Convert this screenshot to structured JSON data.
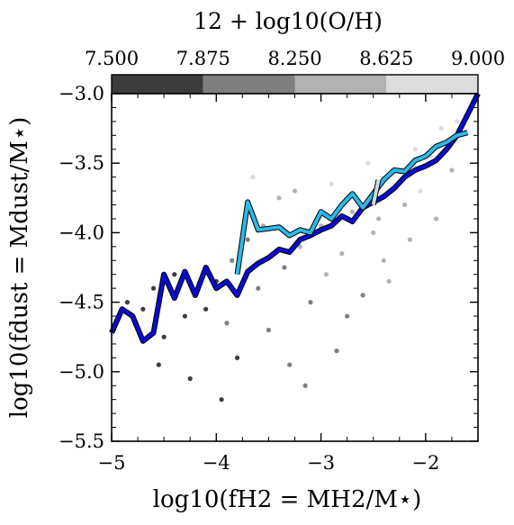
{
  "chart_data": {
    "type": "scatter",
    "colorbar": {
      "title": "12 + log10(O/H)",
      "ticks": [
        "7.500",
        "7.875",
        "8.250",
        "8.625",
        "9.000"
      ],
      "range": [
        7.5,
        9.0
      ],
      "bins": [
        {
          "from": 7.5,
          "to": 7.875,
          "color": "#3c3c3c"
        },
        {
          "from": 7.875,
          "to": 8.25,
          "color": "#7f7f7f"
        },
        {
          "from": 8.25,
          "to": 8.625,
          "color": "#b2b2b2"
        },
        {
          "from": 8.625,
          "to": 9.0,
          "color": "#dcdcdc"
        }
      ]
    },
    "xlabel": "log10(fH2 = MH2/M⋆)",
    "ylabel": "log10(fdust = Mdust/M⋆)",
    "xlim": [
      -5.0,
      -1.5
    ],
    "ylim": [
      -5.5,
      -3.0
    ],
    "xticks": [
      -5,
      -4,
      -3,
      -2
    ],
    "yticks": [
      -3.0,
      -3.5,
      -4.0,
      -4.5,
      -5.0,
      -5.5
    ],
    "xtick_labels": [
      "−5",
      "−4",
      "−3",
      "−2"
    ],
    "ytick_labels": [
      "−3.0",
      "−3.5",
      "−4.0",
      "−4.5",
      "−5.0",
      "−5.5"
    ],
    "scatter_points": [
      {
        "x": -4.85,
        "y": -4.5,
        "z": 7.6
      },
      {
        "x": -4.7,
        "y": -4.55,
        "z": 7.7
      },
      {
        "x": -4.6,
        "y": -4.4,
        "z": 7.6
      },
      {
        "x": -4.5,
        "y": -4.75,
        "z": 7.8
      },
      {
        "x": -4.4,
        "y": -4.3,
        "z": 7.7
      },
      {
        "x": -4.3,
        "y": -4.6,
        "z": 7.6
      },
      {
        "x": -4.2,
        "y": -4.45,
        "z": 7.9
      },
      {
        "x": -4.1,
        "y": -4.55,
        "z": 7.7
      },
      {
        "x": -4.0,
        "y": -4.35,
        "z": 7.8
      },
      {
        "x": -3.9,
        "y": -4.65,
        "z": 7.9
      },
      {
        "x": -3.85,
        "y": -4.2,
        "z": 8.0
      },
      {
        "x": -3.8,
        "y": -4.9,
        "z": 7.8
      },
      {
        "x": -3.7,
        "y": -4.05,
        "z": 8.1
      },
      {
        "x": -3.6,
        "y": -4.4,
        "z": 7.9
      },
      {
        "x": -3.5,
        "y": -4.7,
        "z": 8.0
      },
      {
        "x": -3.4,
        "y": -3.75,
        "z": 8.6
      },
      {
        "x": -3.35,
        "y": -4.25,
        "z": 8.2
      },
      {
        "x": -3.3,
        "y": -4.95,
        "z": 8.1
      },
      {
        "x": -3.2,
        "y": -4.1,
        "z": 8.3
      },
      {
        "x": -3.1,
        "y": -4.5,
        "z": 8.0
      },
      {
        "x": -3.0,
        "y": -3.95,
        "z": 8.5
      },
      {
        "x": -2.95,
        "y": -4.3,
        "z": 8.3
      },
      {
        "x": -2.9,
        "y": -3.65,
        "z": 8.7
      },
      {
        "x": -2.8,
        "y": -4.15,
        "z": 8.4
      },
      {
        "x": -2.7,
        "y": -3.85,
        "z": 8.6
      },
      {
        "x": -2.6,
        "y": -4.45,
        "z": 8.2
      },
      {
        "x": -2.55,
        "y": -3.5,
        "z": 8.8
      },
      {
        "x": -2.45,
        "y": -3.9,
        "z": 8.5
      },
      {
        "x": -2.4,
        "y": -4.2,
        "z": 8.4
      },
      {
        "x": -2.3,
        "y": -3.55,
        "z": 8.7
      },
      {
        "x": -2.2,
        "y": -3.8,
        "z": 8.6
      },
      {
        "x": -2.1,
        "y": -3.4,
        "z": 8.9
      },
      {
        "x": -2.05,
        "y": -3.7,
        "z": 8.7
      },
      {
        "x": -1.95,
        "y": -3.45,
        "z": 8.8
      },
      {
        "x": -1.85,
        "y": -3.25,
        "z": 8.9
      },
      {
        "x": -1.75,
        "y": -3.55,
        "z": 8.6
      },
      {
        "x": -1.7,
        "y": -3.2,
        "z": 8.9
      },
      {
        "x": -3.55,
        "y": -3.95,
        "z": 8.4
      },
      {
        "x": -3.25,
        "y": -3.7,
        "z": 8.6
      },
      {
        "x": -2.75,
        "y": -4.6,
        "z": 8.1
      },
      {
        "x": -2.5,
        "y": -4.0,
        "z": 8.4
      },
      {
        "x": -2.35,
        "y": -4.35,
        "z": 8.3
      },
      {
        "x": -2.15,
        "y": -4.05,
        "z": 8.5
      },
      {
        "x": -1.9,
        "y": -3.9,
        "z": 8.6
      },
      {
        "x": -3.65,
        "y": -3.6,
        "z": 8.8
      },
      {
        "x": -4.55,
        "y": -4.95,
        "z": 7.6
      },
      {
        "x": -4.25,
        "y": -5.05,
        "z": 7.7
      },
      {
        "x": -3.95,
        "y": -5.2,
        "z": 7.8
      },
      {
        "x": -3.15,
        "y": -5.1,
        "z": 8.0
      },
      {
        "x": -2.85,
        "y": -4.85,
        "z": 8.2
      }
    ],
    "series": [
      {
        "x": [
          -5.0,
          -4.9,
          -4.8,
          -4.7,
          -4.6,
          -4.5,
          -4.4,
          -4.3,
          -4.2,
          -4.1,
          -4.0,
          -3.9,
          -3.8,
          -3.7,
          -3.6,
          -3.5,
          -3.4,
          -3.3,
          -3.2,
          -3.1,
          -3.0,
          -2.9,
          -2.8,
          -2.7,
          -2.6,
          -2.5,
          -2.4,
          -2.3,
          -2.2,
          -2.1,
          -2.0,
          -1.9,
          -1.8,
          -1.7,
          -1.6,
          -1.5
        ],
        "y": [
          -4.72,
          -4.55,
          -4.6,
          -4.78,
          -4.72,
          -4.3,
          -4.47,
          -4.28,
          -4.45,
          -4.25,
          -4.4,
          -4.35,
          -4.45,
          -4.28,
          -4.22,
          -4.18,
          -4.12,
          -4.14,
          -4.05,
          -4.02,
          -3.98,
          -3.95,
          -3.88,
          -3.92,
          -3.82,
          -3.78,
          -3.74,
          -3.68,
          -3.6,
          -3.55,
          -3.52,
          -3.48,
          -3.4,
          -3.3,
          -3.15,
          -3.0
        ],
        "color": "#0a0ad2"
      },
      {
        "x": [
          -3.8,
          -3.7,
          -3.6,
          -3.5,
          -3.4,
          -3.3,
          -3.2,
          -3.1,
          -3.0,
          -2.9,
          -2.8,
          -2.7,
          -2.6,
          -2.5,
          -2.4,
          -2.3,
          -2.2,
          -2.1,
          -2.0,
          -1.9,
          -1.8,
          -1.7,
          -1.6
        ],
        "y": [
          -4.3,
          -3.78,
          -3.98,
          -3.97,
          -3.96,
          -4.02,
          -3.98,
          -4.0,
          -3.85,
          -3.9,
          -3.8,
          -3.72,
          -3.82,
          -3.72,
          -3.62,
          -3.55,
          -3.56,
          -3.48,
          -3.45,
          -3.38,
          -3.35,
          -3.3,
          -3.28
        ],
        "color": "#2bb8e8"
      },
      {
        "x": [
          -2.5,
          -2.45
        ],
        "y": [
          -3.8,
          -3.62
        ],
        "color": "#c8dde8"
      }
    ]
  }
}
